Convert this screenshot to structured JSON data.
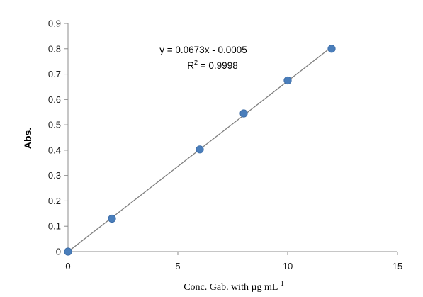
{
  "chart_data": {
    "type": "scatter",
    "title": "",
    "xlabel": "Conc. Gab. with µg mL",
    "xlabel_sup": "-1",
    "ylabel": "Abs.",
    "xlim": [
      0,
      15
    ],
    "ylim": [
      0,
      0.9
    ],
    "xticks": [
      "0",
      "5",
      "10",
      "15"
    ],
    "yticks": [
      "0",
      "0.1",
      "0.2",
      "0.3",
      "0.4",
      "0.5",
      "0.6",
      "0.7",
      "0.8",
      "0.9"
    ],
    "grid": false,
    "legend": "none",
    "series": [
      {
        "x": [
          0,
          2,
          6,
          8,
          10,
          12
        ],
        "y": [
          0,
          0.13,
          0.403,
          0.545,
          0.675,
          0.8
        ],
        "color": "#4a7ebb"
      }
    ],
    "trendline": {
      "slope": 0.0673,
      "intercept": -0.0005,
      "x_range": [
        0,
        12
      ],
      "color": "#7f7f7f",
      "equation": "y = 0.0673x - 0.0005",
      "r2_prefix": "R",
      "r2_sup": "2",
      "r2_suffix": " = 0.9998"
    }
  }
}
